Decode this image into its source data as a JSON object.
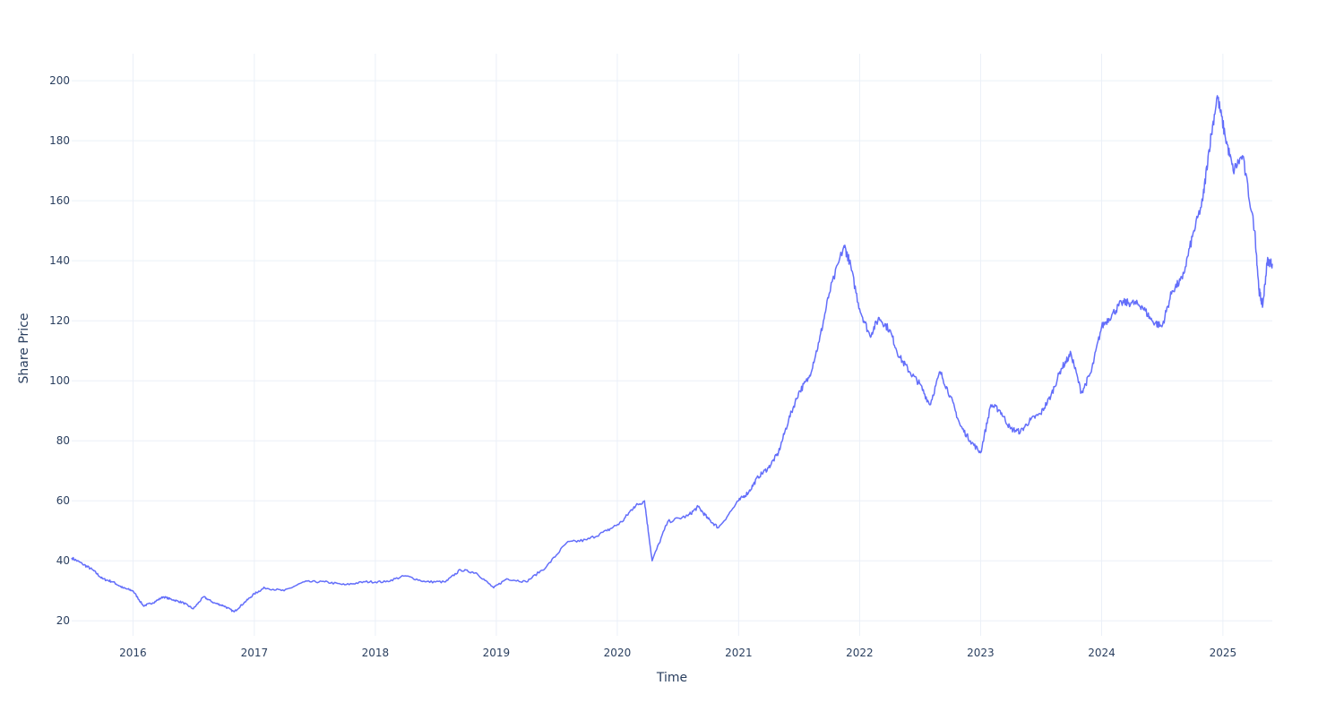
{
  "chart_data": {
    "type": "line",
    "title": "",
    "xlabel": "Time",
    "ylabel": "Share Price",
    "xlim": [
      "2015-06-30",
      "2025-05-30"
    ],
    "ylim": [
      15,
      209
    ],
    "x_ticks": [
      "2016",
      "2017",
      "2018",
      "2019",
      "2020",
      "2021",
      "2022",
      "2023",
      "2024",
      "2025"
    ],
    "y_ticks": [
      20,
      40,
      60,
      80,
      100,
      120,
      140,
      160,
      180,
      200
    ],
    "grid": true,
    "legend": "none",
    "line_color": "#636efa",
    "series": [
      {
        "x": [
          "2015-06-30",
          "2015-08-01",
          "2015-09-01",
          "2015-10-01",
          "2015-11-01",
          "2015-12-01",
          "2016-01-01",
          "2016-02-01",
          "2016-03-01",
          "2016-04-01",
          "2016-05-01",
          "2016-06-01",
          "2016-07-01",
          "2016-08-01",
          "2016-09-01",
          "2016-10-01",
          "2016-11-01",
          "2016-12-01",
          "2017-01-01",
          "2017-02-01",
          "2017-04-01",
          "2017-06-01",
          "2017-08-01",
          "2017-10-01",
          "2017-12-01",
          "2018-02-01",
          "2018-04-01",
          "2018-06-01",
          "2018-08-01",
          "2018-09-15",
          "2018-11-01",
          "2018-12-24",
          "2019-02-01",
          "2019-04-01",
          "2019-06-01",
          "2019-08-01",
          "2019-10-01",
          "2019-12-01",
          "2020-01-15",
          "2020-02-20",
          "2020-03-23",
          "2020-04-15",
          "2020-06-01",
          "2020-08-01",
          "2020-09-01",
          "2020-10-01",
          "2020-11-01",
          "2021-01-01",
          "2021-02-01",
          "2021-03-01",
          "2021-04-01",
          "2021-05-01",
          "2021-06-01",
          "2021-07-01",
          "2021-08-01",
          "2021-09-01",
          "2021-10-01",
          "2021-11-15",
          "2021-12-01",
          "2022-01-01",
          "2022-02-01",
          "2022-03-01",
          "2022-04-01",
          "2022-05-01",
          "2022-06-01",
          "2022-07-01",
          "2022-08-01",
          "2022-09-01",
          "2022-10-01",
          "2022-11-01",
          "2022-12-01",
          "2023-01-01",
          "2023-02-01",
          "2023-03-01",
          "2023-04-01",
          "2023-05-01",
          "2023-06-01",
          "2023-07-01",
          "2023-08-01",
          "2023-09-01",
          "2023-10-01",
          "2023-11-01",
          "2023-12-01",
          "2024-01-01",
          "2024-02-01",
          "2024-03-01",
          "2024-04-01",
          "2024-05-01",
          "2024-06-01",
          "2024-07-01",
          "2024-08-01",
          "2024-09-01",
          "2024-10-01",
          "2024-11-01",
          "2024-11-20",
          "2024-12-15",
          "2025-01-07",
          "2025-02-01",
          "2025-03-01",
          "2025-04-07",
          "2025-04-20",
          "2025-05-01",
          "2025-05-15",
          "2025-05-30"
        ],
        "values": [
          41,
          39,
          37,
          34,
          33,
          31,
          30,
          25,
          26,
          28,
          27,
          26,
          24,
          28,
          26,
          25,
          23,
          26,
          29,
          31,
          30,
          33,
          33,
          32,
          33,
          33,
          35,
          33,
          33,
          37,
          36,
          31,
          34,
          33,
          38,
          46,
          47,
          50,
          53,
          58,
          60,
          40,
          53,
          55,
          58,
          54,
          51,
          60,
          63,
          68,
          71,
          76,
          87,
          96,
          101,
          113,
          129,
          145,
          140,
          124,
          115,
          121,
          117,
          108,
          103,
          99,
          92,
          103,
          95,
          85,
          80,
          76,
          92,
          90,
          84,
          83,
          87,
          89,
          95,
          104,
          109,
          96,
          103,
          118,
          122,
          126,
          126,
          125,
          120,
          118,
          130,
          134,
          148,
          160,
          177,
          195,
          182,
          170,
          175,
          150,
          130,
          125,
          140,
          139
        ],
        "name": ""
      }
    ]
  }
}
